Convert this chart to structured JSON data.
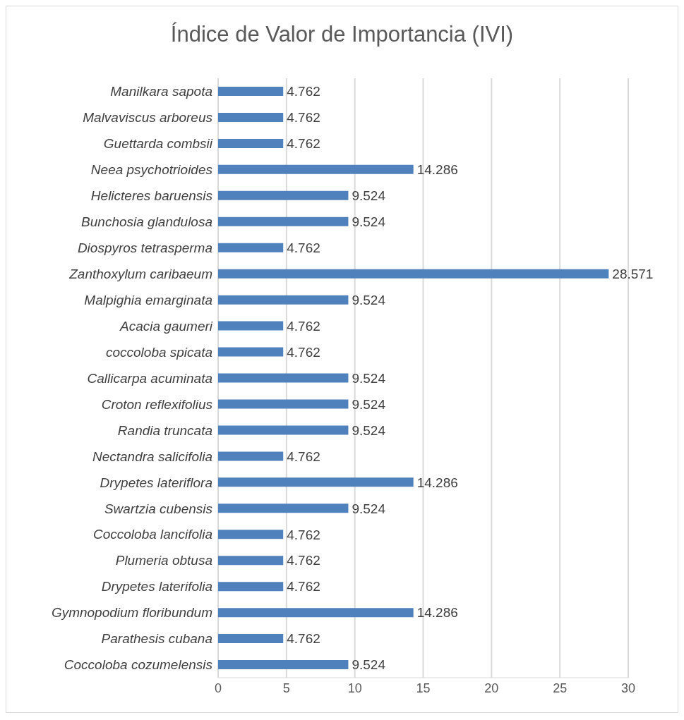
{
  "chart_data": {
    "type": "bar",
    "orientation": "horizontal",
    "title": "Índice de Valor de Importancia (IVI)",
    "categories": [
      "Manilkara sapota",
      "Malvaviscus arboreus",
      "Guettarda combsii",
      "Neea psychotrioides",
      "Helicteres baruensis",
      "Bunchosia glandulosa",
      "Diospyros tetrasperma",
      "Zanthoxylum caribaeum",
      "Malpighia emarginata",
      "Acacia gaumeri",
      "coccoloba spicata",
      "Callicarpa acuminata",
      "Croton reflexifolius",
      "Randia truncata",
      "Nectandra salicifolia",
      "Drypetes lateriflora",
      "Swartzia cubensis",
      "Coccoloba lancifolia",
      "Plumeria obtusa",
      "Drypetes laterifolia",
      "Gymnopodium floribundum",
      "Parathesis cubana",
      "Coccoloba cozumelensis"
    ],
    "values": [
      4.762,
      4.762,
      4.762,
      14.286,
      9.524,
      9.524,
      4.762,
      28.571,
      9.524,
      4.762,
      4.762,
      9.524,
      9.524,
      9.524,
      4.762,
      14.286,
      9.524,
      4.762,
      4.762,
      4.762,
      14.286,
      4.762,
      9.524
    ],
    "color": "#4f81bd",
    "xlim": [
      0,
      30
    ],
    "xticks": [
      0,
      5,
      10,
      15,
      20,
      25,
      30
    ],
    "grid": "x",
    "data_labels": true
  }
}
